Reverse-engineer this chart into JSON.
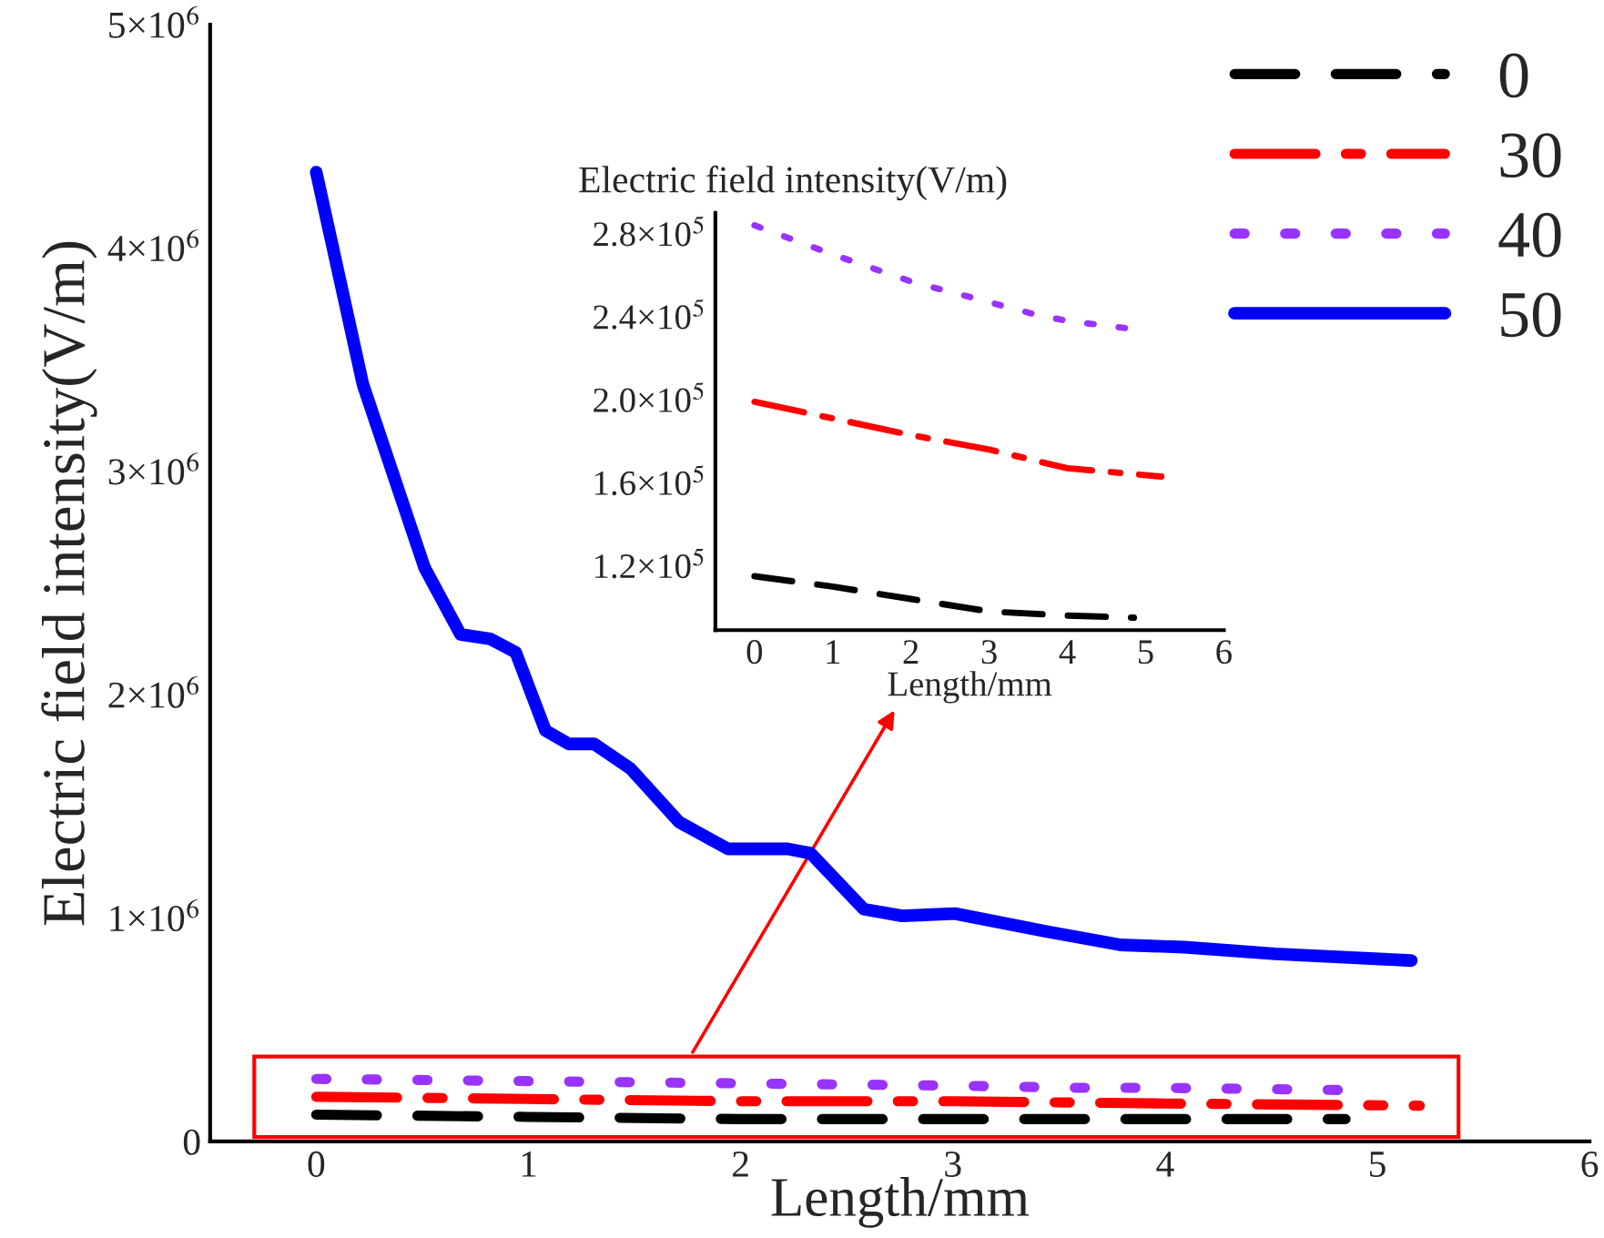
{
  "chart_data": [
    {
      "type": "line",
      "xlabel": "Length/mm",
      "ylabel": "Electric field intensity(V/m)",
      "xlim": [
        -0.5,
        6
      ],
      "xticks": [
        0,
        1,
        2,
        3,
        4,
        5,
        6
      ],
      "ylim": [
        0,
        5000000
      ],
      "yticks": [
        0,
        {
          "value": 1000000,
          "label": "1×10$^{6}$"
        },
        {
          "value": 2000000,
          "label": "2×10$^{6}$"
        },
        {
          "value": 3000000,
          "label": "3×10$^{6}$"
        },
        {
          "value": 4000000,
          "label": "4×10$^{6}$"
        },
        {
          "value": 5000000,
          "label": "5×10$^{6}$"
        }
      ],
      "grid": false,
      "legend": "top right",
      "series": [
        {
          "name": "0",
          "color": "#000000",
          "line_style": "dashed",
          "x": [
            0,
            1,
            2,
            3,
            4,
            4.85
          ],
          "values": [
            120000,
            110000,
            100000,
            100000,
            100000,
            100000
          ]
        },
        {
          "name": "30",
          "color": "#ff0000",
          "line_style": "dashdot",
          "x": [
            0,
            1,
            2,
            3,
            4,
            5.2
          ],
          "values": [
            200000,
            190000,
            180000,
            180000,
            170000,
            160000
          ]
        },
        {
          "name": "40",
          "color": "#9933ff",
          "line_style": "dotted",
          "x": [
            0,
            1,
            2,
            3,
            3.6,
            4,
            4.85
          ],
          "values": [
            280000,
            270000,
            260000,
            250000,
            240000,
            240000,
            230000
          ]
        },
        {
          "name": "50",
          "color": "#0000ff",
          "line_style": "solid",
          "x": [
            0,
            0.22,
            0.51,
            0.68,
            0.82,
            0.94,
            1.08,
            1.19,
            1.31,
            1.48,
            1.71,
            1.94,
            2.22,
            2.33,
            2.58,
            2.76,
            3.01,
            3.44,
            3.79,
            4.09,
            4.52,
            5.16
          ],
          "values": [
            4340000,
            3390000,
            2570000,
            2270000,
            2250000,
            2190000,
            1840000,
            1780000,
            1780000,
            1670000,
            1430000,
            1310000,
            1310000,
            1290000,
            1040000,
            1010000,
            1020000,
            940000,
            880000,
            870000,
            840000,
            810000
          ]
        }
      ]
    },
    {
      "type": "line",
      "xlabel": "Length/mm",
      "ylabel": "Electric field intensity(V/m)",
      "xlim": [
        -0.5,
        6
      ],
      "xticks": [
        0,
        1,
        2,
        3,
        4,
        5,
        6
      ],
      "ylim": [
        89000,
        290000
      ],
      "yticks": [
        {
          "value": 120000,
          "label": "1.2×10$^{5}$"
        },
        {
          "value": 160000,
          "label": "1.6×10$^{5}$"
        },
        {
          "value": 200000,
          "label": "2.0×10$^{5}$"
        },
        {
          "value": 240000,
          "label": "2.4×10$^{5}$"
        },
        {
          "value": 280000,
          "label": "2.8×10$^{5}$"
        }
      ],
      "grid": false,
      "series": [
        {
          "color": "#000000",
          "line_style": "dashed",
          "x": [
            0,
            1,
            2,
            3,
            4,
            4.85
          ],
          "values": [
            115000,
            110000,
            104000,
            98000,
            96000,
            95000
          ]
        },
        {
          "color": "#ff0000",
          "line_style": "dashdot",
          "x": [
            0,
            1,
            2,
            3,
            4,
            5.2
          ],
          "values": [
            199000,
            191000,
            183000,
            176000,
            167000,
            163000
          ]
        },
        {
          "color": "#9933ff",
          "line_style": "dotted",
          "x": [
            0,
            1,
            2,
            3,
            3.6,
            4,
            4.85
          ],
          "values": [
            284000,
            270000,
            257000,
            247000,
            241000,
            238000,
            234000
          ]
        }
      ]
    }
  ]
}
